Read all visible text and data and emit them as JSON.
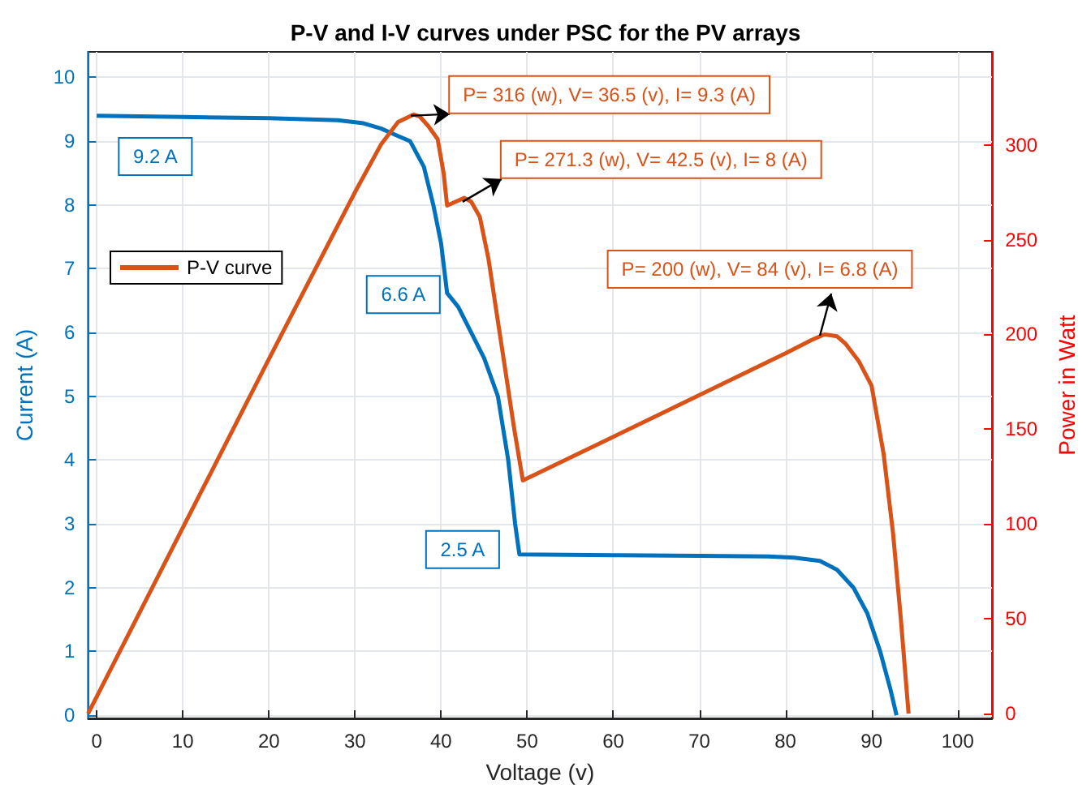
{
  "chart_data": {
    "type": "line",
    "title": "P-V and I-V curves under PSC for the PV arrays",
    "xlabel": "Voltage (v)",
    "ylabel": "Current (A)",
    "y2label": "Power in Watt",
    "xlim": [
      -1,
      104
    ],
    "xticks": [
      0,
      10,
      20,
      30,
      40,
      50,
      60,
      70,
      80,
      90,
      100
    ],
    "ylim": [
      -0.05,
      10.4
    ],
    "yticks": [
      0,
      1,
      2,
      3,
      4,
      5,
      6,
      7,
      8,
      9,
      10
    ],
    "y2lim": [
      -2.5,
      349
    ],
    "y2ticks": [
      0,
      50,
      100,
      150,
      200,
      250,
      300
    ],
    "grid": true,
    "legend": "left",
    "marker": "none",
    "line_style": "solid",
    "series": [
      {
        "color": "#0072bd",
        "x": [
          0,
          10,
          20,
          28,
          31,
          33,
          35,
          36.4,
          38,
          39.1,
          40,
          40.7,
          42,
          43.5,
          45,
          46.6,
          47.8,
          48.6,
          49.1,
          60,
          70,
          78,
          81,
          84,
          86,
          87.9,
          89.5,
          91,
          92.2,
          92.9
        ],
        "values": [
          9.4,
          9.38,
          9.36,
          9.33,
          9.28,
          9.2,
          9.08,
          9,
          8.6,
          8,
          7.4,
          6.62,
          6.4,
          6,
          5.6,
          5,
          4,
          3,
          2.52,
          2.51,
          2.5,
          2.49,
          2.47,
          2.42,
          2.28,
          2,
          1.6,
          1,
          0.4,
          0
        ]
      },
      {
        "name": "P-V curve",
        "color": "#d95319",
        "axis": "y2",
        "x": [
          -1,
          10,
          20,
          30,
          33,
          35,
          36.8,
          37.5,
          38.5,
          39.6,
          40.3,
          40.7,
          42.7,
          43.5,
          44.5,
          45.5,
          46.5,
          47.5,
          48.5,
          49.5,
          60,
          70,
          80,
          83,
          84.5,
          86,
          87,
          88.5,
          90,
          91.4,
          92.5,
          93.4,
          94.3
        ],
        "values": [
          0,
          98,
          187,
          275,
          300,
          312,
          316,
          315,
          310,
          303,
          285,
          268,
          272,
          270,
          262,
          240,
          210,
          180,
          150,
          123,
          146,
          168,
          190,
          197,
          200,
          199,
          195,
          186,
          173,
          137,
          95,
          50,
          0
        ]
      }
    ],
    "annotations": [
      {
        "text": "P= 316 (w), V= 36.5 (v), I= 9.3 (A)",
        "x": 36.5,
        "y": 9.4
      },
      {
        "text": "P= 271.3 (w), V= 42.5 (v), I= 8 (A)",
        "x": 42.5,
        "y": 8.05
      },
      {
        "text": "P= 200 (w), V= 84 (v), I= 6.8 (A)",
        "x": 84,
        "y": 5.95
      },
      {
        "text": "9.2 A",
        "x": 7,
        "y": 9.37
      },
      {
        "text": "6.6 A",
        "x": 40.7,
        "y": 6.62
      },
      {
        "text": "2.5 A",
        "x": 49.1,
        "y": 2.52
      }
    ]
  }
}
